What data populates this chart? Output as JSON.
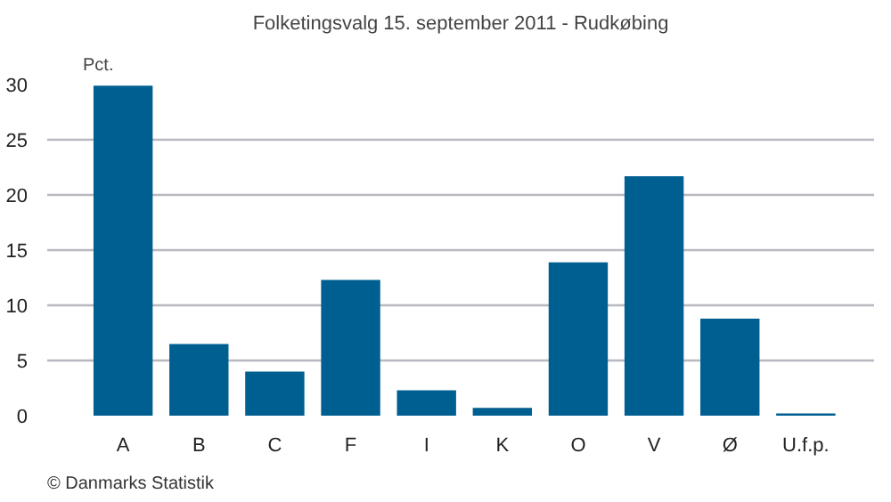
{
  "chart_data": {
    "type": "bar",
    "title": "Folketingsvalg 15. september 2011 - Rudkøbing",
    "ylabel": "Pct.",
    "categories": [
      "A",
      "B",
      "C",
      "F",
      "I",
      "K",
      "O",
      "V",
      "Ø",
      "U.f.p."
    ],
    "values": [
      29.9,
      6.5,
      4.0,
      12.3,
      2.3,
      0.7,
      13.9,
      21.7,
      8.8,
      0.2
    ],
    "color": "#005f91",
    "ylim": [
      0,
      30
    ],
    "yticks": [
      0,
      5,
      10,
      15,
      20,
      25,
      30
    ],
    "grid": "y",
    "annotations": [
      "© Danmarks Statistik"
    ]
  }
}
